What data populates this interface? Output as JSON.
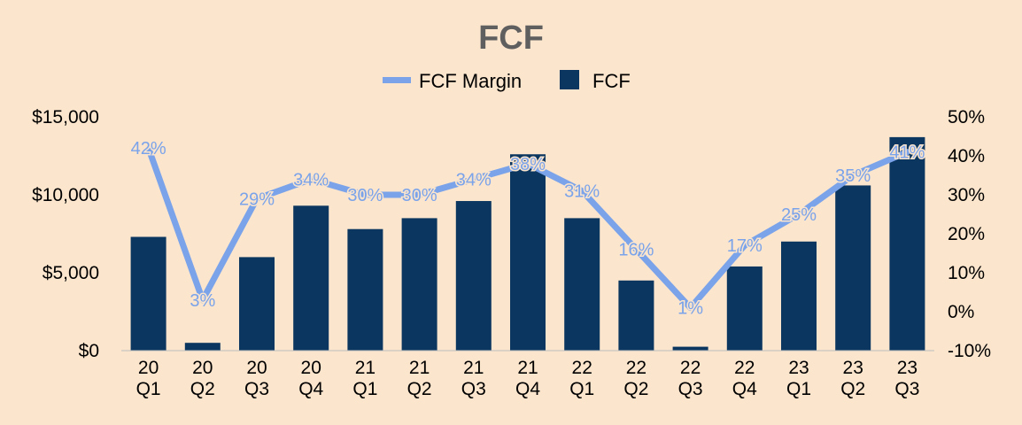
{
  "chart_data": {
    "type": "bar",
    "title": "FCF",
    "legend": {
      "placement": "top",
      "entries": [
        "FCF Margin",
        "FCF"
      ]
    },
    "categories": [
      [
        "20",
        "Q1"
      ],
      [
        "20",
        "Q2"
      ],
      [
        "20",
        "Q3"
      ],
      [
        "20",
        "Q4"
      ],
      [
        "21",
        "Q1"
      ],
      [
        "21",
        "Q2"
      ],
      [
        "21",
        "Q3"
      ],
      [
        "21",
        "Q4"
      ],
      [
        "22",
        "Q1"
      ],
      [
        "22",
        "Q2"
      ],
      [
        "22",
        "Q3"
      ],
      [
        "22",
        "Q4"
      ],
      [
        "23",
        "Q1"
      ],
      [
        "23",
        "Q2"
      ],
      [
        "23",
        "Q3"
      ]
    ],
    "series": [
      {
        "name": "FCF",
        "type": "bar",
        "axis": "left",
        "color": "#0b365f",
        "values": [
          7300,
          500,
          6000,
          9300,
          7800,
          8500,
          9600,
          12600,
          8500,
          4500,
          250,
          5400,
          7000,
          10600,
          13700
        ]
      },
      {
        "name": "FCF Margin",
        "type": "line",
        "axis": "right",
        "color": "#7aa3ea",
        "values": [
          42,
          3,
          29,
          34,
          30,
          30,
          34,
          38,
          31,
          16,
          1,
          17,
          25,
          35,
          41
        ],
        "labels": [
          "42%",
          "3%",
          "29%",
          "34%",
          "30%",
          "30%",
          "34%",
          "38%",
          "31%",
          "16%",
          "1%",
          "17%",
          "25%",
          "35%",
          "41%"
        ]
      }
    ],
    "y_left": {
      "ylim": [
        0,
        15000
      ],
      "ticks": [
        0,
        5000,
        10000,
        15000
      ],
      "tick_labels": [
        "$0",
        "$5,000",
        "$10,000",
        "$15,000"
      ]
    },
    "y_right": {
      "ylim": [
        -10,
        50
      ],
      "ticks": [
        -10,
        0,
        10,
        20,
        30,
        40,
        50
      ],
      "tick_labels": [
        "-10%",
        "0%",
        "10%",
        "20%",
        "30%",
        "40%",
        "50%"
      ]
    },
    "grid": false,
    "xlabel": "",
    "ylabel": ""
  }
}
